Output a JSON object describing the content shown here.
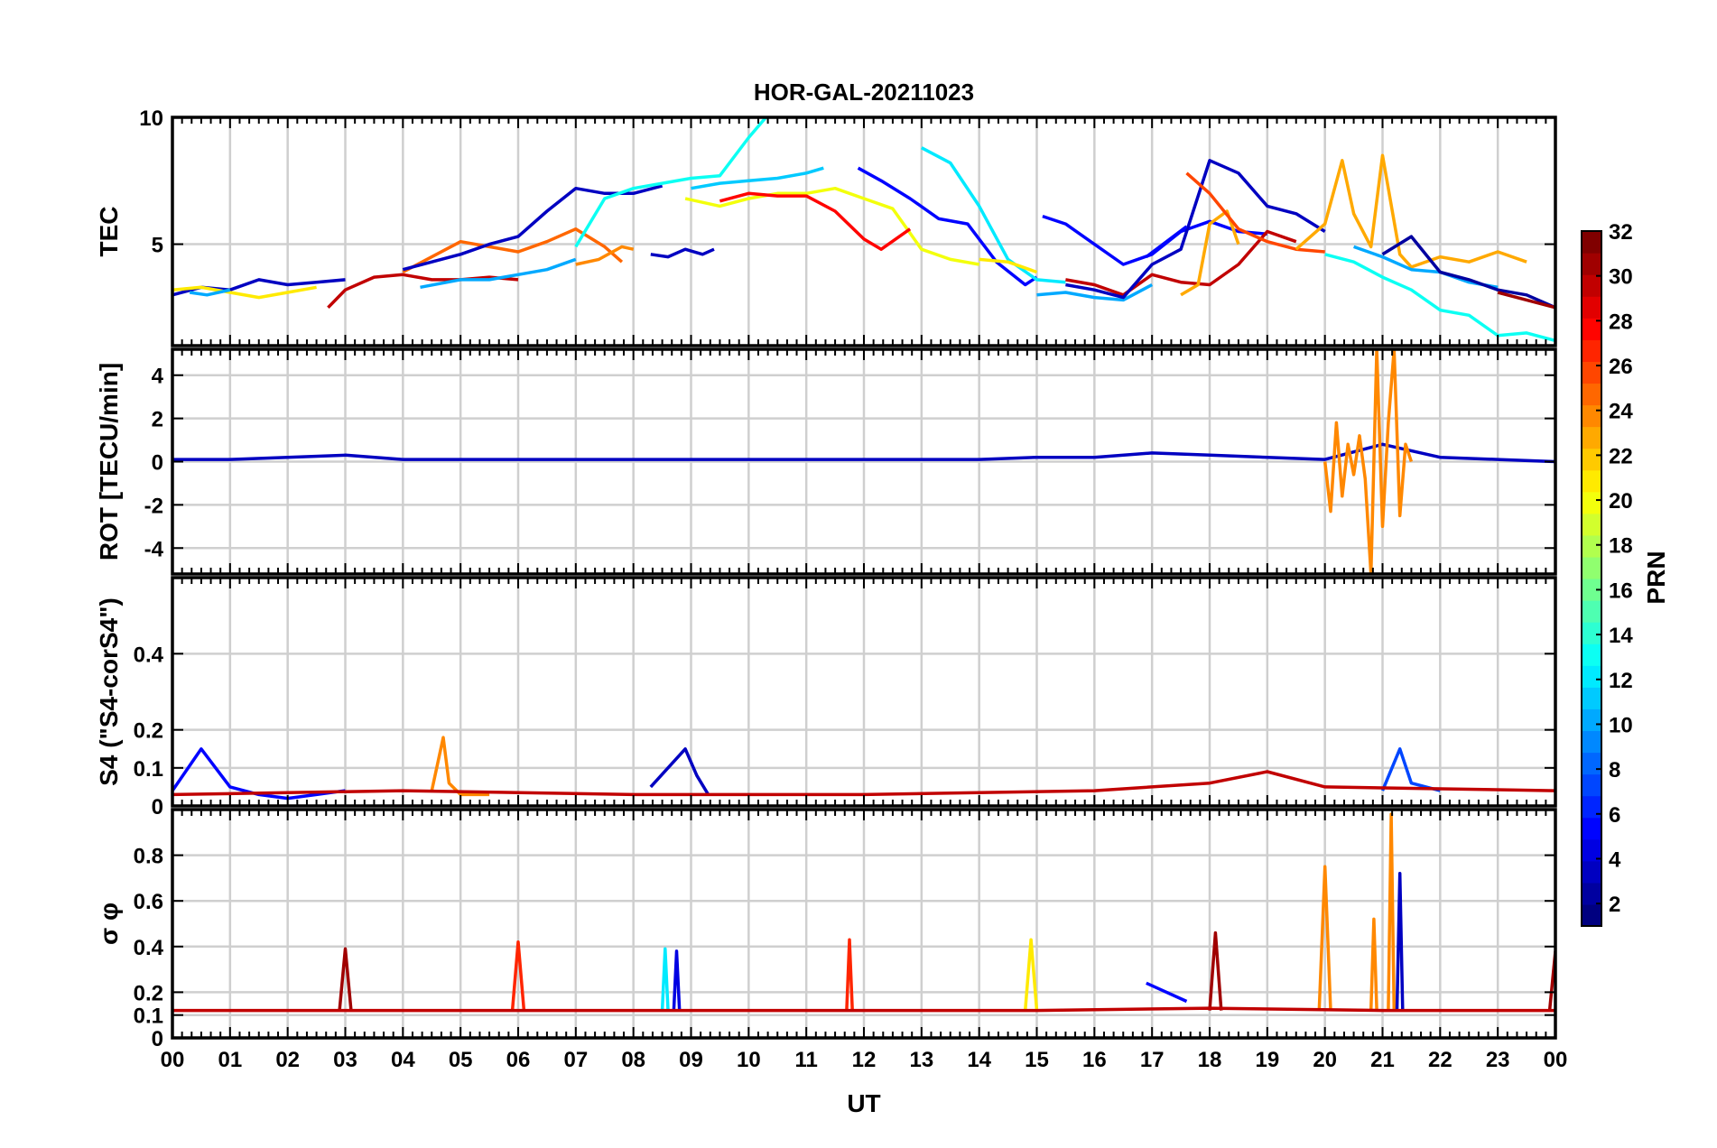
{
  "title": "HOR-GAL-20211023",
  "xlabel": "UT",
  "x_ticks": [
    "00",
    "01",
    "02",
    "03",
    "04",
    "05",
    "06",
    "07",
    "08",
    "09",
    "10",
    "11",
    "12",
    "13",
    "14",
    "15",
    "16",
    "17",
    "18",
    "19",
    "20",
    "21",
    "22",
    "23",
    "00"
  ],
  "colorbar": {
    "label": "PRN",
    "range": [
      1,
      32
    ],
    "ticks": [
      "2",
      "4",
      "6",
      "8",
      "10",
      "12",
      "14",
      "16",
      "18",
      "20",
      "22",
      "24",
      "26",
      "28",
      "30",
      "32"
    ],
    "colormap": "jet"
  },
  "chart_data": [
    {
      "type": "line",
      "panel": "TEC",
      "ylabel": "TEC",
      "ylim": [
        1,
        10
      ],
      "yticks": [
        "5",
        "10"
      ],
      "grid": true,
      "series": [
        {
          "prn": 3,
          "x": [
            0.0,
            0.5,
            1.0,
            1.5,
            2.0,
            2.5,
            3.0
          ],
          "y": [
            3.0,
            3.3,
            3.2,
            3.6,
            3.4,
            3.5,
            3.6
          ]
        },
        {
          "prn": 21,
          "x": [
            0.0,
            0.5,
            1.0,
            1.5,
            2.0,
            2.5
          ],
          "y": [
            3.2,
            3.3,
            3.1,
            2.9,
            3.1,
            3.3
          ]
        },
        {
          "prn": 10,
          "x": [
            0.3,
            0.6,
            1.0
          ],
          "y": [
            3.1,
            3.0,
            3.2
          ]
        },
        {
          "prn": 30,
          "x": [
            2.7,
            3.0,
            3.5,
            4.0,
            4.5,
            5.0,
            5.5,
            6.0
          ],
          "y": [
            2.5,
            3.2,
            3.7,
            3.8,
            3.6,
            3.6,
            3.7,
            3.6
          ]
        },
        {
          "prn": 25,
          "x": [
            4.0,
            4.5,
            5.0,
            5.5,
            6.0,
            6.5,
            7.0,
            7.5,
            7.8
          ],
          "y": [
            3.9,
            4.5,
            5.1,
            4.9,
            4.7,
            5.1,
            5.6,
            4.9,
            4.3
          ]
        },
        {
          "prn": 10,
          "x": [
            4.3,
            5.0,
            5.5,
            6.0,
            6.5,
            7.0
          ],
          "y": [
            3.3,
            3.6,
            3.6,
            3.8,
            4.0,
            4.4
          ]
        },
        {
          "prn": 3,
          "x": [
            4.0,
            5.0,
            5.5,
            6.0,
            6.5,
            7.0,
            7.5,
            8.0,
            8.5
          ],
          "y": [
            4.0,
            4.6,
            5.0,
            5.3,
            6.3,
            7.2,
            7.0,
            7.0,
            7.3
          ]
        },
        {
          "prn": 24,
          "x": [
            7.0,
            7.4,
            7.8,
            8.0
          ],
          "y": [
            4.2,
            4.4,
            4.9,
            4.8
          ]
        },
        {
          "prn": 13,
          "x": [
            7.0,
            7.5,
            8.0,
            8.5,
            9.0,
            9.5,
            10.0,
            10.3
          ],
          "y": [
            4.9,
            6.8,
            7.2,
            7.4,
            7.6,
            7.7,
            9.2,
            10.0
          ]
        },
        {
          "prn": 11,
          "x": [
            9.0,
            9.5,
            10.0,
            10.5,
            11.0,
            11.3
          ],
          "y": [
            7.2,
            7.4,
            7.5,
            7.6,
            7.8,
            8.0
          ]
        },
        {
          "prn": 3,
          "x": [
            8.3,
            8.6,
            8.9,
            9.2,
            9.4
          ],
          "y": [
            4.6,
            4.5,
            4.8,
            4.6,
            4.8
          ]
        },
        {
          "prn": 20,
          "x": [
            8.9,
            9.5,
            10.0,
            10.5,
            11.0,
            11.5,
            12.0,
            12.5,
            13.0,
            13.5,
            14.0
          ],
          "y": [
            6.8,
            6.5,
            6.8,
            7.0,
            7.0,
            7.2,
            6.8,
            6.4,
            4.8,
            4.4,
            4.2
          ]
        },
        {
          "prn": 28,
          "x": [
            9.5,
            10.0,
            10.5,
            11.0,
            11.5,
            12.0,
            12.3,
            12.8
          ],
          "y": [
            6.7,
            7.0,
            6.9,
            6.9,
            6.3,
            5.2,
            4.8,
            5.6
          ]
        },
        {
          "prn": 5,
          "x": [
            11.9,
            12.3,
            12.8,
            13.3,
            13.8,
            14.3,
            14.8,
            15.0
          ],
          "y": [
            8.0,
            7.5,
            6.8,
            6.0,
            5.8,
            4.3,
            3.4,
            3.7
          ]
        },
        {
          "prn": 12,
          "x": [
            13.0,
            13.5,
            14.0,
            14.5,
            15.0,
            15.5
          ],
          "y": [
            8.8,
            8.2,
            6.5,
            4.4,
            3.6,
            3.5
          ]
        },
        {
          "prn": 21,
          "x": [
            14.0,
            14.5,
            15.0
          ],
          "y": [
            4.4,
            4.3,
            3.9
          ]
        },
        {
          "prn": 5,
          "x": [
            15.1,
            15.5,
            16.0,
            16.5,
            17.0,
            17.5,
            18.0,
            18.5,
            19.0
          ],
          "y": [
            6.1,
            5.8,
            5.0,
            4.2,
            4.6,
            5.5,
            5.9,
            5.5,
            5.4
          ]
        },
        {
          "prn": 10,
          "x": [
            15.0,
            15.5,
            16.0,
            16.5,
            17.0
          ],
          "y": [
            3.0,
            3.1,
            2.9,
            2.8,
            3.4
          ]
        },
        {
          "prn": 30,
          "x": [
            15.5,
            16.0,
            16.5,
            17.0,
            17.5,
            18.0,
            18.5,
            19.0,
            19.5
          ],
          "y": [
            3.6,
            3.4,
            3.0,
            3.8,
            3.5,
            3.4,
            4.2,
            5.5,
            5.1
          ]
        },
        {
          "prn": 3,
          "x": [
            15.5,
            16.0,
            16.5,
            17.0,
            17.5,
            18.0,
            18.5,
            19.0,
            19.5,
            20.0
          ],
          "y": [
            3.4,
            3.2,
            2.9,
            4.2,
            4.8,
            8.3,
            7.8,
            6.5,
            6.2,
            5.5
          ]
        },
        {
          "prn": 5,
          "x": [
            16.9,
            17.6
          ],
          "y": [
            4.5,
            5.7
          ]
        },
        {
          "prn": 23,
          "x": [
            17.5,
            17.8,
            18.0,
            18.3,
            18.5
          ],
          "y": [
            3.0,
            3.4,
            5.8,
            6.3,
            5.0
          ]
        },
        {
          "prn": 26,
          "x": [
            17.6,
            18.0,
            18.5,
            19.0,
            19.5,
            20.0
          ],
          "y": [
            7.8,
            7.0,
            5.6,
            5.1,
            4.8,
            4.7
          ]
        },
        {
          "prn": 23,
          "x": [
            19.5,
            20.0,
            20.3,
            20.5,
            20.8,
            21.0,
            21.3,
            21.5,
            22.0,
            22.5,
            23.0,
            23.5
          ],
          "y": [
            4.8,
            5.8,
            8.3,
            6.2,
            4.9,
            8.5,
            4.6,
            4.1,
            4.5,
            4.3,
            4.7,
            4.3
          ]
        },
        {
          "prn": 13,
          "x": [
            20.0,
            20.5,
            21.0,
            21.5,
            22.0,
            22.5,
            23.0,
            23.5,
            24.0
          ],
          "y": [
            4.6,
            4.3,
            3.7,
            3.2,
            2.4,
            2.2,
            1.4,
            1.5,
            1.2
          ]
        },
        {
          "prn": 10,
          "x": [
            20.5,
            21.0,
            21.5,
            22.0,
            22.5,
            23.0
          ],
          "y": [
            4.9,
            4.5,
            4.0,
            3.9,
            3.5,
            3.3
          ]
        },
        {
          "prn": 2,
          "x": [
            21.0,
            21.5,
            22.0,
            22.5,
            23.0,
            23.5,
            24.0
          ],
          "y": [
            4.6,
            5.3,
            3.9,
            3.6,
            3.2,
            3.0,
            2.5
          ]
        },
        {
          "prn": 31,
          "x": [
            23.0,
            23.5,
            24.0
          ],
          "y": [
            3.1,
            2.8,
            2.5
          ]
        }
      ]
    },
    {
      "type": "line",
      "panel": "ROT",
      "ylabel": "ROT [TECU/min]",
      "ylim": [
        -5.2,
        5.2
      ],
      "yticks": [
        "-4",
        "-2",
        "0",
        "2",
        "4"
      ],
      "grid": true,
      "series": [
        {
          "prn": 3,
          "x": [
            0,
            1,
            2,
            3,
            4,
            5,
            6,
            7,
            8,
            9,
            10,
            11,
            12,
            13,
            14,
            15,
            16,
            17,
            18,
            19,
            20,
            21,
            22,
            23,
            24
          ],
          "y": [
            0.1,
            0.1,
            0.2,
            0.3,
            0.1,
            0.1,
            0.1,
            0.1,
            0.1,
            0.1,
            0.1,
            0.1,
            0.1,
            0.1,
            0.1,
            0.2,
            0.2,
            0.4,
            0.3,
            0.2,
            0.1,
            0.8,
            0.2,
            0.1,
            0
          ]
        },
        {
          "prn": 24,
          "x": [
            20.0,
            20.1,
            20.2,
            20.3,
            20.4,
            20.5,
            20.6,
            20.7,
            20.8,
            20.9,
            21.0,
            21.1,
            21.2,
            21.3,
            21.4,
            21.5
          ],
          "y": [
            0,
            -2.3,
            1.8,
            -1.6,
            0.8,
            -0.6,
            1.2,
            -0.8,
            -5.2,
            5.2,
            -3.0,
            1.8,
            5.2,
            -2.5,
            0.8,
            0
          ]
        }
      ]
    },
    {
      "type": "line",
      "panel": "S4",
      "ylabel": "S4 (\"S4-corS4\")",
      "ylim": [
        0,
        0.6
      ],
      "yticks": [
        "0",
        "0.1",
        "0.2",
        "0.4"
      ],
      "grid": true,
      "series": [
        {
          "prn": 5,
          "x": [
            0.0,
            0.5,
            1.0,
            1.5,
            2.0,
            2.5,
            3.0
          ],
          "y": [
            0.04,
            0.15,
            0.05,
            0.03,
            0.02,
            0.03,
            0.04
          ]
        },
        {
          "prn": 24,
          "x": [
            4.5,
            4.7,
            4.8,
            5.0,
            5.5
          ],
          "y": [
            0.04,
            0.18,
            0.06,
            0.03,
            0.03
          ]
        },
        {
          "prn": 3,
          "x": [
            8.3,
            8.6,
            8.9,
            9.1,
            9.3
          ],
          "y": [
            0.05,
            0.1,
            0.15,
            0.08,
            0.03
          ]
        },
        {
          "prn": 7,
          "x": [
            21.0,
            21.3,
            21.5,
            22.0
          ],
          "y": [
            0.04,
            0.15,
            0.06,
            0.04
          ]
        },
        {
          "prn": 30,
          "x": [
            0,
            4,
            8,
            12,
            16,
            18,
            19,
            20,
            24
          ],
          "y": [
            0.03,
            0.04,
            0.03,
            0.03,
            0.04,
            0.06,
            0.09,
            0.05,
            0.04
          ]
        }
      ]
    },
    {
      "type": "line",
      "panel": "sigma_phi",
      "ylabel": "σ φ",
      "ylim": [
        0,
        1.0
      ],
      "yticks": [
        "0",
        "0.1",
        "0.2",
        "0.4",
        "0.6",
        "0.8"
      ],
      "grid": true,
      "series": [
        {
          "prn": 31,
          "x": [
            2.9,
            3.0,
            3.1
          ],
          "y": [
            0.12,
            0.39,
            0.12
          ]
        },
        {
          "prn": 27,
          "x": [
            5.9,
            6.0,
            6.1
          ],
          "y": [
            0.12,
            0.42,
            0.12
          ]
        },
        {
          "prn": 12,
          "x": [
            8.5,
            8.55,
            8.6
          ],
          "y": [
            0.12,
            0.39,
            0.12
          ]
        },
        {
          "prn": 4,
          "x": [
            8.7,
            8.75,
            8.8
          ],
          "y": [
            0.12,
            0.38,
            0.12
          ]
        },
        {
          "prn": 27,
          "x": [
            11.7,
            11.75,
            11.8
          ],
          "y": [
            0.12,
            0.43,
            0.12
          ]
        },
        {
          "prn": 21,
          "x": [
            14.8,
            14.9,
            15.0
          ],
          "y": [
            0.12,
            0.43,
            0.12
          ]
        },
        {
          "prn": 5,
          "x": [
            16.9,
            17.6
          ],
          "y": [
            0.24,
            0.16
          ]
        },
        {
          "prn": 31,
          "x": [
            18.0,
            18.1,
            18.2
          ],
          "y": [
            0.12,
            0.46,
            0.12
          ]
        },
        {
          "prn": 24,
          "x": [
            19.9,
            20.0,
            20.1
          ],
          "y": [
            0.12,
            0.75,
            0.12
          ]
        },
        {
          "prn": 24,
          "x": [
            20.8,
            20.85,
            20.9
          ],
          "y": [
            0.12,
            0.52,
            0.12
          ]
        },
        {
          "prn": 24,
          "x": [
            21.1,
            21.15,
            21.2
          ],
          "y": [
            0.12,
            0.98,
            0.12
          ]
        },
        {
          "prn": 3,
          "x": [
            21.25,
            21.3,
            21.35
          ],
          "y": [
            0.12,
            0.72,
            0.12
          ]
        },
        {
          "prn": 31,
          "x": [
            23.9,
            24.0
          ],
          "y": [
            0.12,
            0.38
          ]
        },
        {
          "prn": 30,
          "x": [
            0,
            3,
            6,
            9,
            12,
            15,
            18,
            21,
            24
          ],
          "y": [
            0.12,
            0.12,
            0.12,
            0.12,
            0.12,
            0.12,
            0.13,
            0.12,
            0.12
          ]
        }
      ]
    }
  ]
}
